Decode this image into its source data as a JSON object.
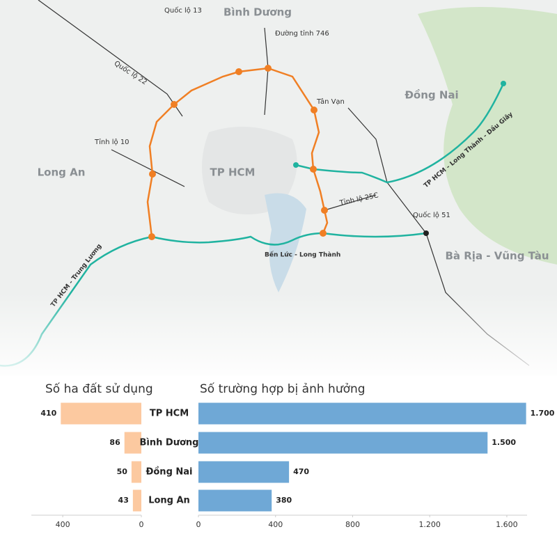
{
  "map": {
    "labels": [
      "Bình Dương",
      "Quốc lộ 13",
      "Đường tỉnh 746",
      "Quốc lộ 22",
      "Tân Vạn",
      "Đồng Nai",
      "Tỉnh lộ 10",
      "Long An",
      "TP HCM",
      "TP HCM - Long Thành - Dầu Giây",
      "Tỉnh lộ 25C",
      "Quốc lộ 51",
      "Bến Lức - Long Thành",
      "Bà Rịa - Vũng Tàu",
      "TP HCM - Trung Lương"
    ]
  },
  "chart_data": [
    {
      "type": "bar",
      "orientation": "horizontal",
      "reversed": true,
      "title": "Số ha đất sử dụng",
      "categories": [
        "TP HCM",
        "Bình Dương",
        "Đồng Nai",
        "Long An"
      ],
      "values": [
        410,
        86,
        50,
        43
      ],
      "color": "#fcc9a0",
      "xlim": [
        0,
        560
      ],
      "xticks": [
        400,
        0
      ]
    },
    {
      "type": "bar",
      "orientation": "horizontal",
      "reversed": false,
      "title": "Số trường hợp bị ảnh hưởng",
      "values": [
        1700,
        1500,
        470,
        380
      ],
      "value_labels": [
        "1.700",
        "1.500",
        "470",
        "380"
      ],
      "color": "#6fa8d6",
      "xlim": [
        0,
        1705
      ],
      "xticks": [
        0,
        400,
        800,
        {
          "value": 1200,
          "label": "1.200"
        },
        {
          "value": 1600,
          "label": "1.600"
        }
      ]
    }
  ]
}
